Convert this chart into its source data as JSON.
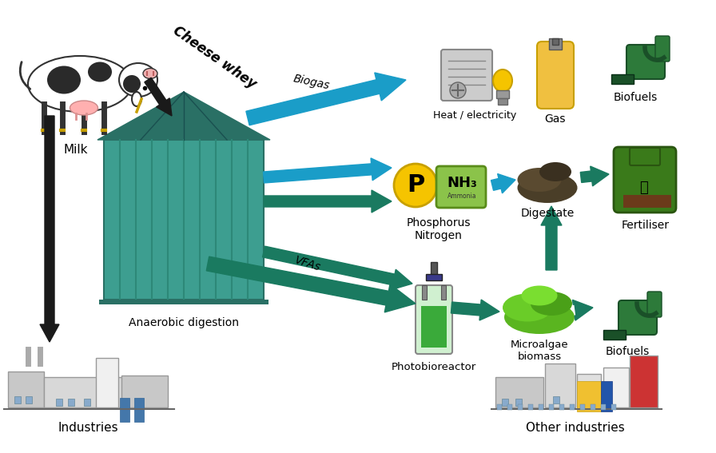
{
  "bg_color": "#ffffff",
  "labels": {
    "milk": "Milk",
    "cheese_whey": "Cheese whey",
    "biogas": "Biogas",
    "heat_electricity": "Heat / electricity",
    "gas": "Gas",
    "biofuels_top": "Biofuels",
    "anaerobic": "Anaerobic digestion",
    "phosphorus_nitrogen": "Phosphorus\nNitrogen",
    "digestate": "Digestate",
    "fertiliser": "Fertiliser",
    "vfas": "VFAs",
    "photobioreactor": "Photobioreactor",
    "microalgae": "Microalgae\nbiomass",
    "biofuels_bottom": "Biofuels",
    "industries": "Industries",
    "other_industries": "Other industries"
  },
  "arrow_color_black": "#1a1a1a",
  "arrow_color_blue": "#1a9dc8",
  "arrow_color_teal": "#1a7a60",
  "silo_color_main": "#3d9e90",
  "silo_color_dark": "#2a7065",
  "silo_color_stripe": "#2d8878",
  "phosphorus_circle_color": "#f5c400",
  "nh3_rect_color": "#8bc34a"
}
